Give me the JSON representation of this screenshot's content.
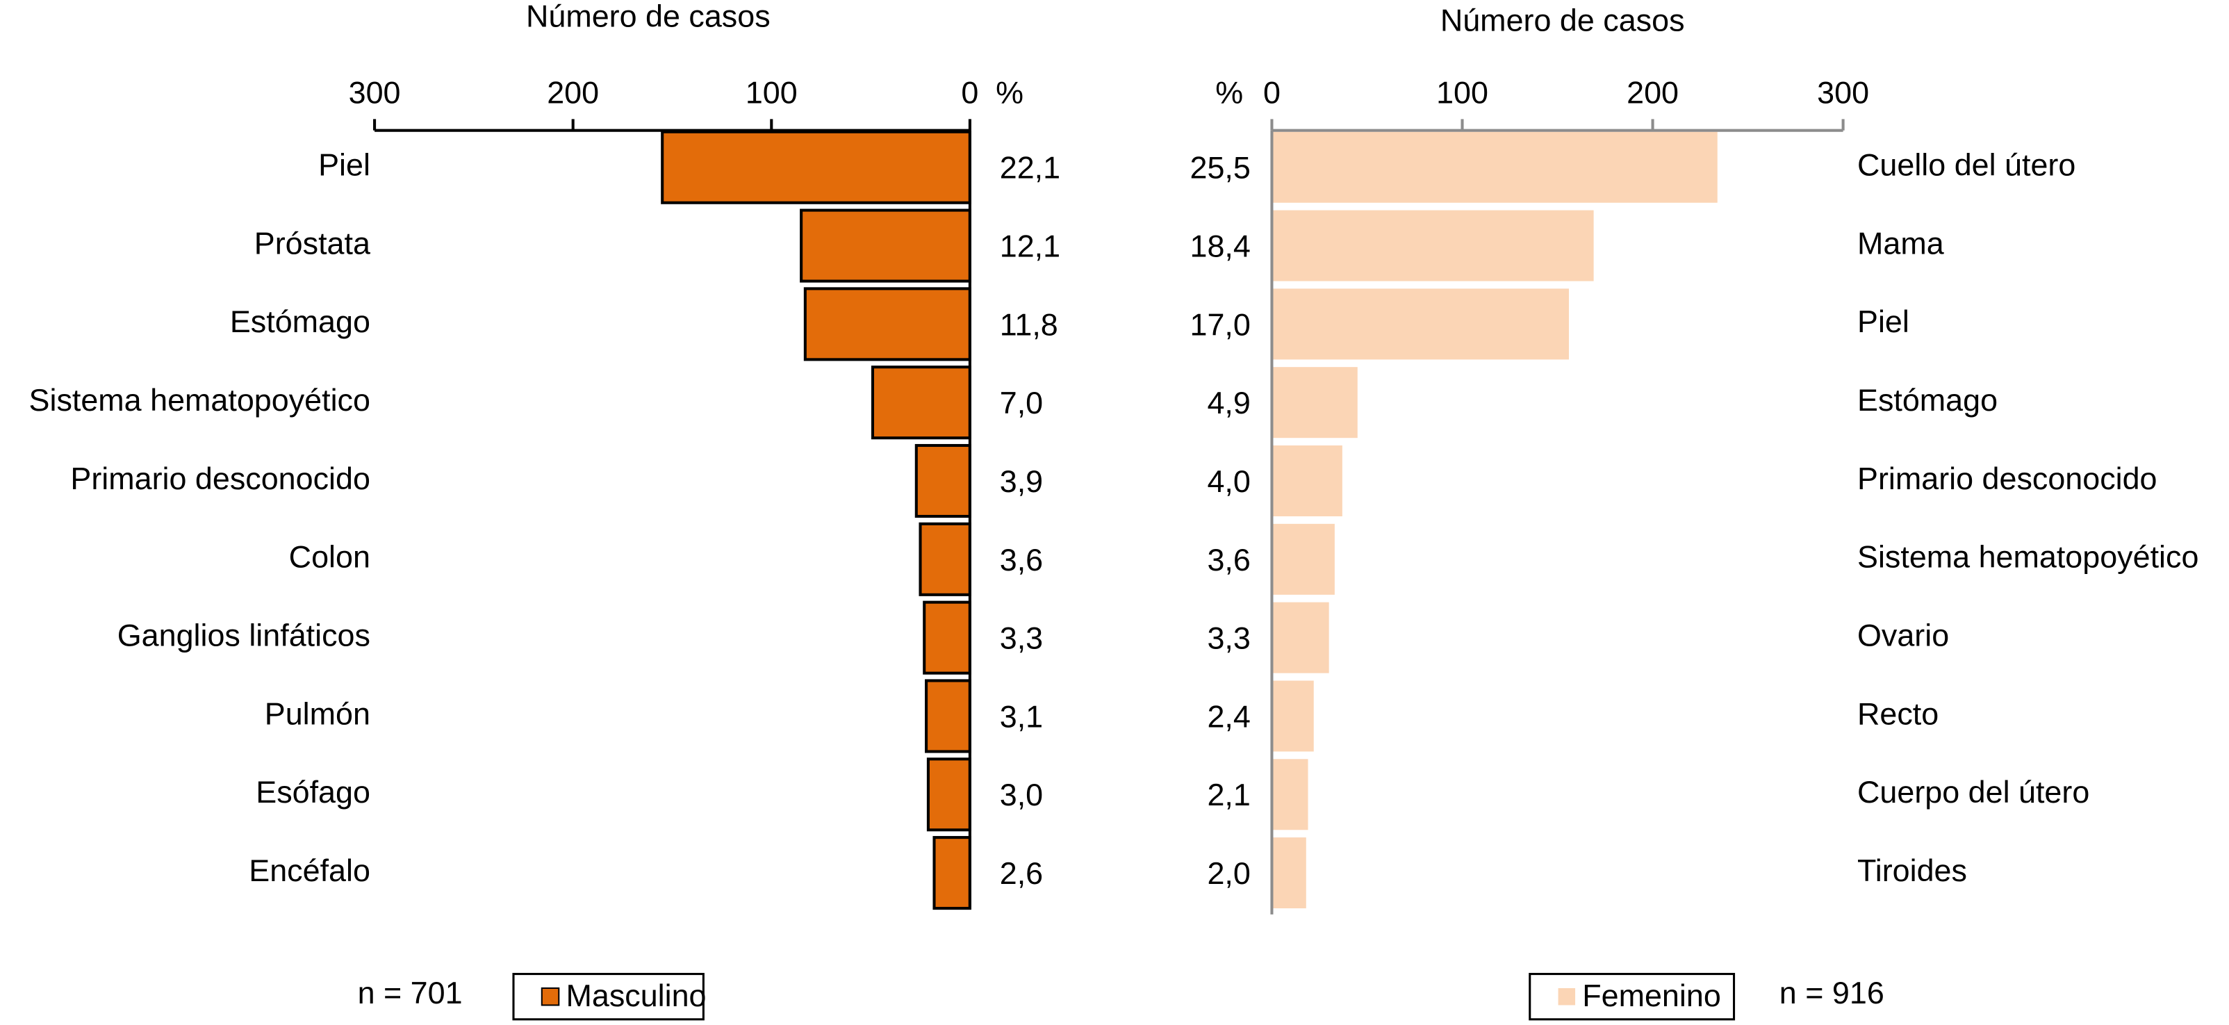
{
  "chart_data": [
    {
      "type": "bar",
      "orientation": "horizontal",
      "direction": "left",
      "xlabel": "Número de casos",
      "percent_header": "%",
      "categories": [
        "Piel",
        "Próstata",
        "Estómago",
        "Sistema hematopoyético",
        "Primario desconocido",
        "Colon",
        "Ganglios linfáticos",
        "Pulmón",
        "Esófago",
        "Encéfalo"
      ],
      "series": [
        {
          "name": "Masculino",
          "color": "#e36c0a",
          "edgecolor": "#000000",
          "values": [
            155,
            85,
            83,
            49,
            27,
            25,
            23,
            22,
            21,
            18
          ]
        }
      ],
      "percentages": [
        "22,1",
        "12,1",
        "11,8",
        "7,0",
        "3,9",
        "3,6",
        "3,3",
        "3,1",
        "3,0",
        "2,6"
      ],
      "note": "n = 701",
      "axis_color": "#000000",
      "xlim": [
        0,
        300
      ],
      "xticks": [
        0,
        100,
        200,
        300
      ]
    },
    {
      "type": "bar",
      "orientation": "horizontal",
      "direction": "right",
      "xlabel": "Número de casos",
      "percent_header": "%",
      "categories": [
        "Cuello del útero",
        "Mama",
        "Piel",
        "Estómago",
        "Primario desconocido",
        "Sistema hematopoyético",
        "Ovario",
        "Recto",
        "Cuerpo del útero",
        "Tiroides"
      ],
      "series": [
        {
          "name": "Femenino",
          "color": "#fbd5b5",
          "values": [
            234,
            169,
            156,
            45,
            37,
            33,
            30,
            22,
            19,
            18
          ]
        }
      ],
      "percentages": [
        "25,5",
        "18,4",
        "17,0",
        "4,9",
        "4,0",
        "3,6",
        "3,3",
        "2,4",
        "2,1",
        "2,0"
      ],
      "note": "n = 916",
      "axis_color": "#8c8c8c",
      "xlim": [
        0,
        300
      ],
      "xticks": [
        0,
        100,
        200,
        300
      ]
    }
  ]
}
